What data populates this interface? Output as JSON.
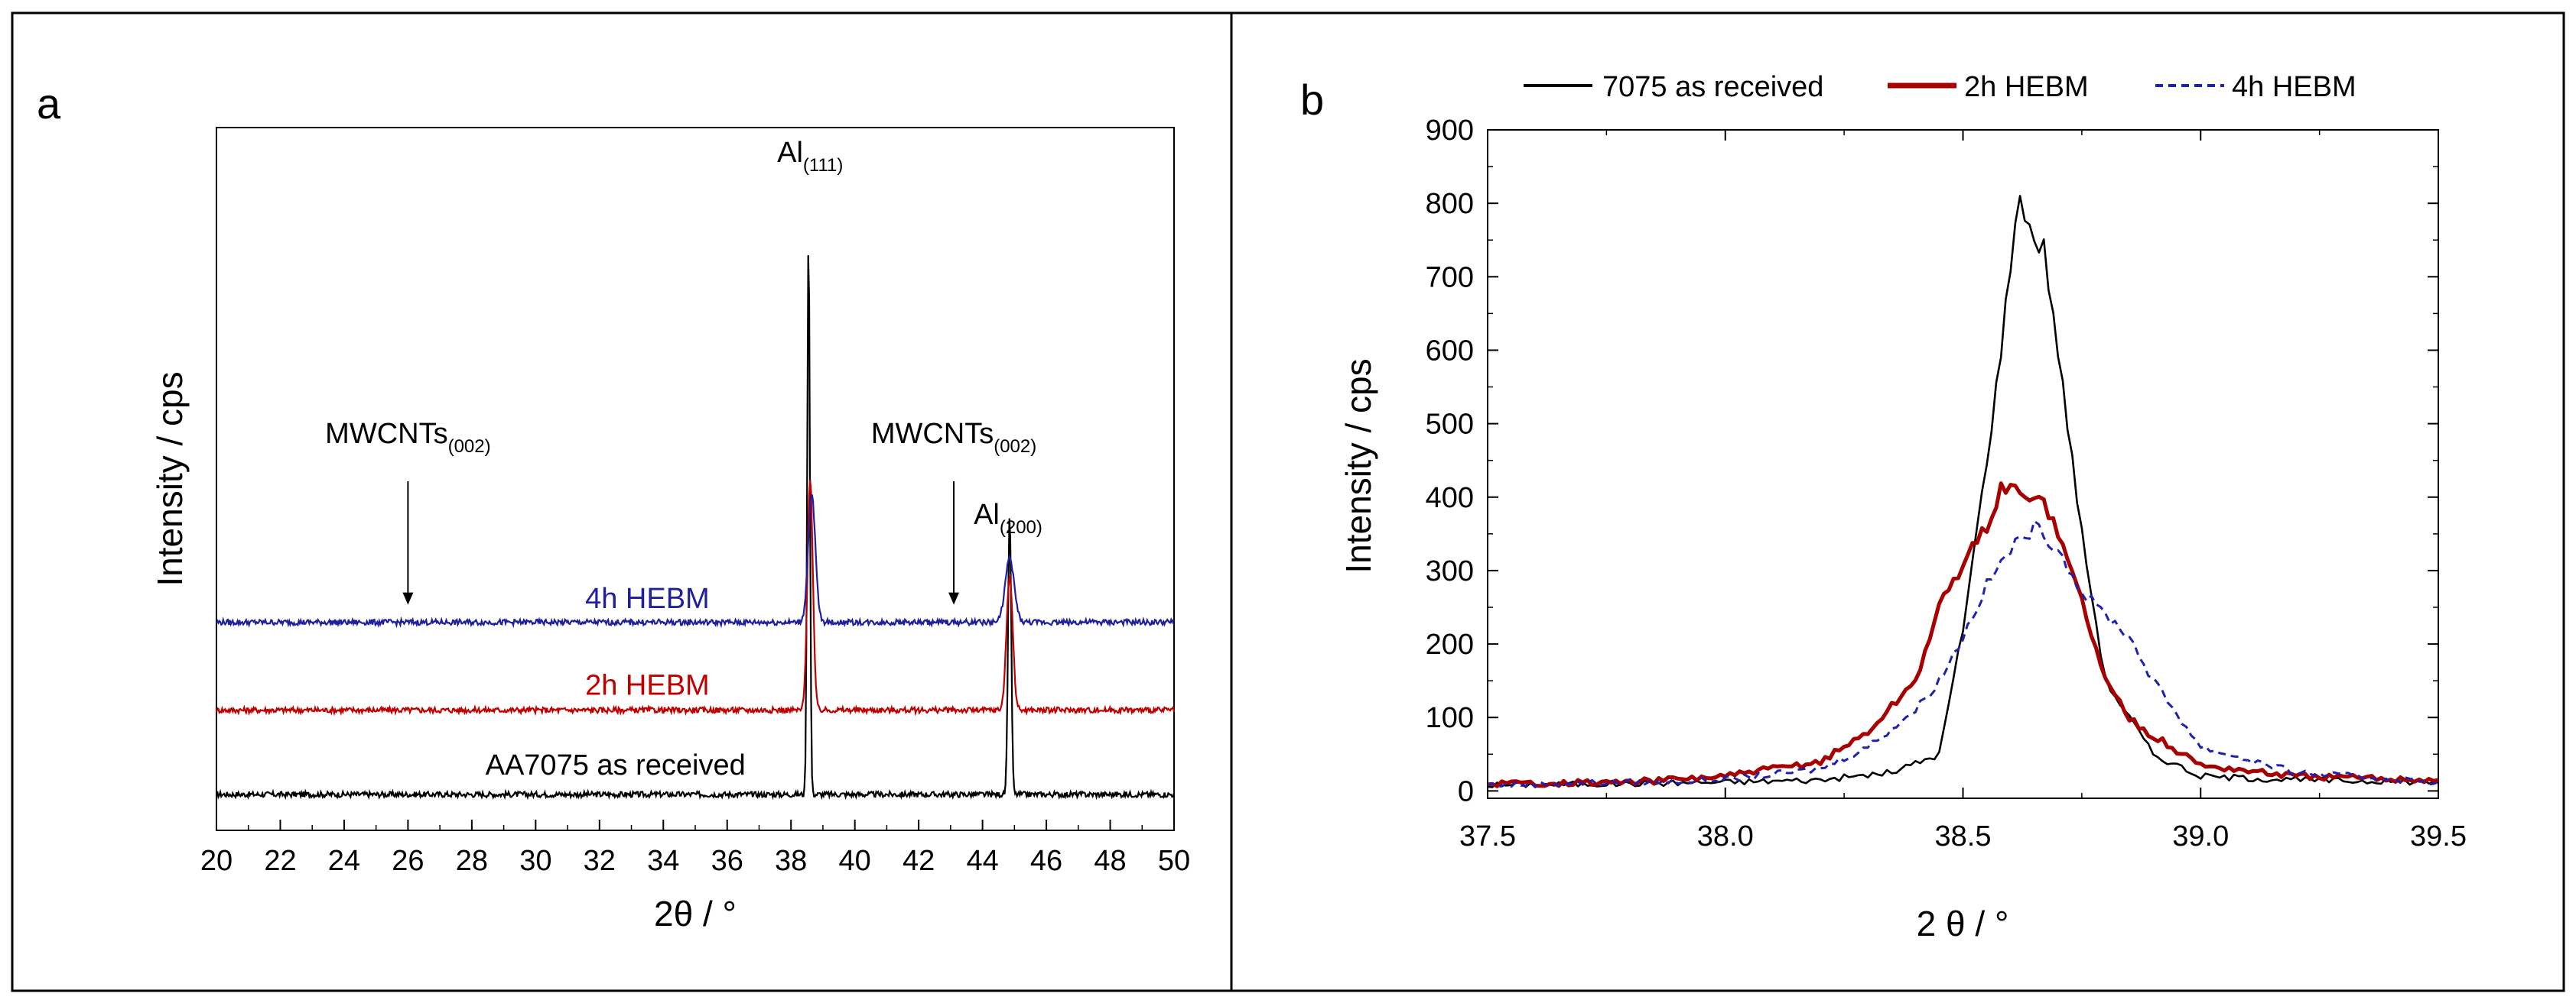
{
  "figure": {
    "panel_a_label": "a",
    "panel_b_label": "b"
  },
  "chart_data": [
    {
      "type": "line",
      "panel": "a",
      "title": "",
      "xlabel": "2θ / °",
      "ylabel": "Intensity / cps",
      "xlim": [
        20,
        50
      ],
      "xticks": [
        "20",
        "22",
        "24",
        "26",
        "28",
        "30",
        "32",
        "34",
        "36",
        "38",
        "40",
        "42",
        "44",
        "46",
        "48",
        "50"
      ],
      "ylim": [
        0,
        1
      ],
      "grid": false,
      "series": [
        {
          "name": "AA7075 as received",
          "color": "#000000",
          "baseline": 0.0,
          "peaks": [
            {
              "x": 38.55,
              "height": 0.79,
              "width": 0.06
            },
            {
              "x": 44.85,
              "height": 0.4,
              "width": 0.07
            }
          ]
        },
        {
          "name": "2h HEBM",
          "color": "#c00000",
          "baseline": 0.12,
          "peaks": [
            {
              "x": 38.6,
              "height": 0.33,
              "width": 0.12
            },
            {
              "x": 44.85,
              "height": 0.19,
              "width": 0.14
            }
          ]
        },
        {
          "name": "4h HEBM",
          "color": "#1f1fa0",
          "baseline": 0.245,
          "peaks": [
            {
              "x": 38.65,
              "height": 0.18,
              "width": 0.16
            },
            {
              "x": 44.85,
              "height": 0.09,
              "width": 0.2
            }
          ]
        }
      ],
      "annotations": [
        {
          "id": "al111",
          "main": "Al",
          "sub": "(111)",
          "x": 38.6,
          "y": 0.9
        },
        {
          "id": "al200",
          "main": "Al",
          "sub": "(200)",
          "x": 44.8,
          "y": 0.385
        },
        {
          "id": "mwcnt1",
          "main": "MWCNTs",
          "sub": "(002)",
          "x": 26.0,
          "y": 0.5,
          "arrow_to_y": 0.27
        },
        {
          "id": "mwcnt2",
          "main": "MWCNTs",
          "sub": "(002)",
          "x": 43.1,
          "y": 0.5,
          "arrow_to_y": 0.27
        }
      ],
      "series_labels": [
        {
          "text": "4h HEBM",
          "color": "#1f1fa0",
          "x": 33.5,
          "y": 0.265
        },
        {
          "text": "2h HEBM",
          "color": "#c00000",
          "x": 33.5,
          "y": 0.142
        },
        {
          "text": "AA7075 as received",
          "color": "#000000",
          "x": 32.5,
          "y": 0.028
        }
      ]
    },
    {
      "type": "line",
      "panel": "b",
      "title": "",
      "xlabel": "2 θ / °",
      "ylabel": "Intensity / cps",
      "xlim": [
        37.5,
        39.5
      ],
      "ylim": [
        -10,
        900
      ],
      "xticks": [
        "37.5",
        "38.0",
        "38.5",
        "39.0",
        "39.5"
      ],
      "yticks": [
        "0",
        "100",
        "200",
        "300",
        "400",
        "500",
        "600",
        "700",
        "800",
        "900"
      ],
      "legend": [
        "7075 as received",
        "2h HEBM",
        "4h HEBM"
      ],
      "legend_position": "top",
      "series": [
        {
          "name": "7075 as received",
          "color": "#000000",
          "style": "solid",
          "x": [
            37.5,
            37.8,
            38.0,
            38.2,
            38.35,
            38.45,
            38.5,
            38.55,
            38.58,
            38.6,
            38.62,
            38.65,
            38.67,
            38.7,
            38.72,
            38.75,
            38.8,
            38.9,
            39.0,
            39.2,
            39.5
          ],
          "y": [
            8,
            10,
            12,
            15,
            25,
            50,
            220,
            450,
            600,
            720,
            810,
            750,
            740,
            600,
            500,
            350,
            150,
            50,
            20,
            15,
            12
          ]
        },
        {
          "name": "2h HEBM",
          "color": "#a80000",
          "style": "solid",
          "x": [
            37.5,
            37.8,
            38.0,
            38.2,
            38.3,
            38.4,
            38.45,
            38.5,
            38.55,
            38.58,
            38.6,
            38.63,
            38.66,
            38.7,
            38.75,
            38.8,
            38.85,
            38.9,
            39.0,
            39.2,
            39.5
          ],
          "y": [
            10,
            12,
            20,
            40,
            80,
            150,
            250,
            310,
            360,
            410,
            415,
            395,
            410,
            350,
            260,
            150,
            100,
            75,
            35,
            20,
            15
          ]
        },
        {
          "name": "4h HEBM",
          "color": "#2020b0",
          "style": "dashed",
          "x": [
            37.5,
            37.8,
            38.0,
            38.2,
            38.3,
            38.4,
            38.45,
            38.5,
            38.55,
            38.6,
            38.63,
            38.65,
            38.7,
            38.75,
            38.8,
            38.85,
            38.9,
            39.0,
            39.2,
            39.5
          ],
          "y": [
            8,
            12,
            15,
            30,
            60,
            110,
            150,
            210,
            280,
            330,
            345,
            360,
            330,
            270,
            240,
            210,
            150,
            60,
            25,
            12
          ]
        }
      ]
    }
  ]
}
